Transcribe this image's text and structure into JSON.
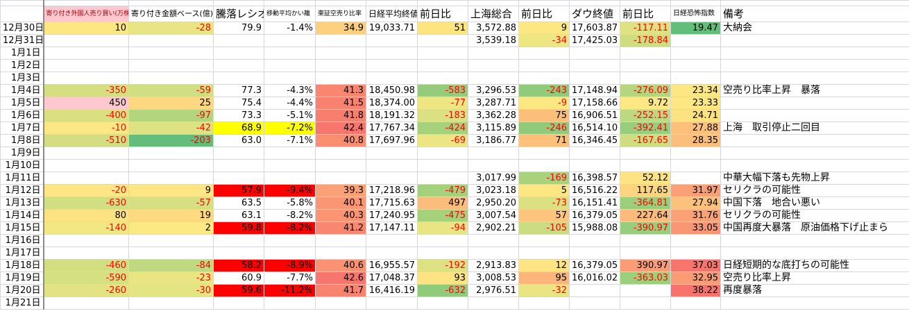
{
  "headers": [
    "",
    "寄り付き外国人売り買い(万株)",
    "寄り付き金額ベース(億)",
    "騰落レシオ",
    "移動平均かい離",
    "東証空売り比率",
    "日経平均終値",
    "前日比",
    "上海総合",
    "前日比",
    "ダウ終値",
    "前日比",
    "日経恐怖指数",
    "備考"
  ],
  "colors": {
    "header_pink": "#ffc7ce",
    "header_pink_text": "#9c0006",
    "negative_text": "#ff0000",
    "alert_red": "#ff0000",
    "alert_yellow": "#ffff00"
  },
  "rows": [
    {
      "date": "12月30日",
      "values": [
        "10",
        "-28",
        "79.9",
        "-1.4%",
        "34.9",
        "19,033.71",
        "51",
        "3,572.88",
        "9",
        "17,603.87",
        "-117.11",
        "19.47",
        "大納会"
      ],
      "fills": [
        "#fde783",
        "#e8e582",
        "",
        "",
        "#fcd07f",
        "",
        "#fde47f",
        "",
        "#fde783",
        "",
        "#dfe283",
        "#63be7b",
        ""
      ]
    },
    {
      "date": "12月31日",
      "values": [
        "",
        "",
        "",
        "",
        "",
        "",
        "",
        "3,539.18",
        "-34",
        "17,425.03",
        "-178.84",
        "",
        ""
      ],
      "fills": [
        "",
        "",
        "",
        "",
        "",
        "",
        "",
        "",
        "#ece683",
        "",
        "#cfdd82",
        "",
        ""
      ]
    },
    {
      "date": "1月1日",
      "values": [
        "",
        "",
        "",
        "",
        "",
        "",
        "",
        "",
        "",
        "",
        "",
        "",
        ""
      ],
      "fills": [
        "",
        "",
        "",
        "",
        "",
        "",
        "",
        "",
        "",
        "",
        "",
        "",
        ""
      ]
    },
    {
      "date": "1月2日",
      "values": [
        "",
        "",
        "",
        "",
        "",
        "",
        "",
        "",
        "",
        "",
        "",
        "",
        ""
      ],
      "fills": [
        "",
        "",
        "",
        "",
        "",
        "",
        "",
        "",
        "",
        "",
        "",
        "",
        ""
      ]
    },
    {
      "date": "1月3日",
      "values": [
        "",
        "",
        "",
        "",
        "",
        "",
        "",
        "",
        "",
        "",
        "",
        "",
        ""
      ],
      "fills": [
        "",
        "",
        "",
        "",
        "",
        "",
        "",
        "",
        "",
        "",
        "",
        "",
        ""
      ]
    },
    {
      "date": "1月4日",
      "values": [
        "-350",
        "-59",
        "77.3",
        "-4.3%",
        "41.3",
        "18,450.98",
        "-583",
        "3,296.53",
        "-243",
        "17,148.94",
        "-276.09",
        "23.34",
        "空売り比率上昇　暴落"
      ],
      "fills": [
        "#d5df82",
        "#d2de82",
        "",
        "",
        "#f98770",
        "",
        "#94cc7b",
        "",
        "#8fcb7a",
        "",
        "#b5d67f",
        "#fde783",
        ""
      ]
    },
    {
      "date": "1月5日",
      "values": [
        "450",
        "25",
        "75.4",
        "-4.4%",
        "41.5",
        "18,374.00",
        "-77",
        "3,287.71",
        "-9",
        "17,158.66",
        "9.72",
        "23.33",
        ""
      ],
      "fills": [
        "#ffc7ce",
        "#fdd880",
        "",
        "",
        "#f8826f",
        "",
        "#ede683",
        "",
        "#fbe883",
        "",
        "#fde883",
        "#fde783",
        ""
      ]
    },
    {
      "date": "1月6日",
      "values": [
        "-400",
        "-97",
        "73.3",
        "-5.1%",
        "41.8",
        "18,191.32",
        "-183",
        "3,362.28",
        "75",
        "16,906.51",
        "-252.15",
        "24.71",
        ""
      ],
      "fills": [
        "#d8e082",
        "#b2d57e",
        "",
        "",
        "#f87f6e",
        "",
        "#dbe182",
        "",
        "#fcbf7b",
        "",
        "#bcd880",
        "#fde282",
        ""
      ]
    },
    {
      "date": "1月7日",
      "values": [
        "-10",
        "-42",
        "68.9",
        "-7.2%",
        "42.4",
        "17,767.34",
        "-424",
        "3,115.89",
        "-246",
        "16,514.10",
        "-392.41",
        "27.88",
        "上海　取引停止二回目"
      ],
      "fills": [
        "#fbe783",
        "#dfe283",
        "#ffff00",
        "#ffff00",
        "#f8766d",
        "",
        "#a5d17d",
        "",
        "#8fcb7a",
        "",
        "#97cd7c",
        "#fcc07b",
        ""
      ]
    },
    {
      "date": "1月8日",
      "values": [
        "-510",
        "-203",
        "63.0",
        "-7.1%",
        "40.8",
        "17,697.96",
        "-69",
        "3,186.77",
        "71",
        "16,346.45",
        "-167.65",
        "28.35",
        ""
      ],
      "fills": [
        "#d3de82",
        "#63be7b",
        "",
        "",
        "#f98e71",
        "",
        "#ece583",
        "",
        "#fcc07b",
        "",
        "#cfdd82",
        "#fcbe7b",
        ""
      ]
    },
    {
      "date": "1月9日",
      "values": [
        "",
        "",
        "",
        "",
        "",
        "",
        "",
        "",
        "",
        "",
        "",
        "",
        ""
      ],
      "fills": [
        "",
        "",
        "",
        "",
        "",
        "",
        "",
        "",
        "",
        "",
        "",
        "",
        ""
      ]
    },
    {
      "date": "1月10日",
      "values": [
        "",
        "",
        "",
        "",
        "",
        "",
        "",
        "",
        "",
        "",
        "",
        "",
        ""
      ],
      "fills": [
        "",
        "",
        "",
        "",
        "",
        "",
        "",
        "",
        "",
        "",
        "",
        "",
        ""
      ]
    },
    {
      "date": "1月11日",
      "values": [
        "",
        "",
        "",
        "",
        "",
        "",
        "",
        "3,017.99",
        "-169",
        "16,398.57",
        "52.12",
        "",
        "中華大幅下落も先物上昇"
      ],
      "fills": [
        "",
        "",
        "",
        "",
        "",
        "",
        "",
        "",
        "#a8d27d",
        "",
        "#fde383",
        "",
        ""
      ]
    },
    {
      "date": "1月12日",
      "values": [
        "-20",
        "9",
        "57.9",
        "-9.4%",
        "39.3",
        "17,218.96",
        "-479",
        "3,023.18",
        "5",
        "16,516.22",
        "117.65",
        "31.97",
        "セリクラの可能性"
      ],
      "fills": [
        "#fde683",
        "#fde683",
        "#ff0000",
        "#ff0000",
        "#faa176",
        "",
        "#a5d17d",
        "",
        "#fee783",
        "",
        "#fdd47f",
        "#fa9f76",
        ""
      ]
    },
    {
      "date": "1月13日",
      "values": [
        "-630",
        "-57",
        "63.5",
        "-5.8%",
        "40.1",
        "17,715.63",
        "497",
        "2,950.20",
        "-73",
        "16,151.41",
        "-364.81",
        "27.94",
        "中国下落　地合い悪い"
      ],
      "fills": [
        "#d1de82",
        "#d6df82",
        "",
        "",
        "#fa9673",
        "",
        "#fcbc7b",
        "",
        "#dbe182",
        "",
        "#9acf7c",
        "#fcc27c",
        ""
      ]
    },
    {
      "date": "1月14日",
      "values": [
        "80",
        "19",
        "63.1",
        "-8.2%",
        "40.3",
        "17,240.95",
        "-475",
        "3,007.54",
        "57",
        "16,379.05",
        "227.64",
        "31.76",
        "セリクラの可能性"
      ],
      "fills": [
        "#fde282",
        "#fdda80",
        "",
        "",
        "#fa9473",
        "",
        "#a5d17d",
        "",
        "#fcc47c",
        "",
        "#fcbb7b",
        "#faa276",
        ""
      ]
    },
    {
      "date": "1月15日",
      "values": [
        "-140",
        "2",
        "59.8",
        "-8.2%",
        "41.2",
        "17,147.11",
        "-94",
        "2,902.21",
        "-105",
        "15,988.08",
        "-390.97",
        "33.05",
        "中国再度大暴落　原油価格下げ止まら"
      ],
      "fills": [
        "#f0e783",
        "#fde983",
        "#ff0000",
        "#ff0000",
        "#f98770",
        "",
        "#eae583",
        "",
        "#cadc81",
        "",
        "#97cd7c",
        "#f99673",
        ""
      ]
    },
    {
      "date": "1月16日",
      "values": [
        "",
        "",
        "",
        "",
        "",
        "",
        "",
        "",
        "",
        "",
        "",
        "",
        ""
      ],
      "fills": [
        "",
        "",
        "",
        "",
        "",
        "",
        "",
        "",
        "",
        "",
        "",
        "",
        ""
      ]
    },
    {
      "date": "1月17日",
      "values": [
        "",
        "",
        "",
        "",
        "",
        "",
        "",
        "",
        "",
        "",
        "",
        "",
        ""
      ],
      "fills": [
        "",
        "",
        "",
        "",
        "",
        "",
        "",
        "",
        "",
        "",
        "",
        "",
        ""
      ]
    },
    {
      "date": "1月18日",
      "values": [
        "-460",
        "-84",
        "58.2",
        "-8.9%",
        "40.6",
        "16,955.57",
        "-192",
        "2,913.83",
        "12",
        "16,379.05",
        "390.97",
        "37.03",
        "日経短期的な底打ちの可能性"
      ],
      "fills": [
        "#d3de82",
        "#bfd980",
        "#ff0000",
        "#ff0000",
        "#f99272",
        "",
        "#dde182",
        "",
        "#fde583",
        "",
        "#fa9c75",
        "#f8756d",
        ""
      ]
    },
    {
      "date": "1月19日",
      "values": [
        "-590",
        "-23",
        "60.9",
        "-7.7%",
        "42.6",
        "17,048.37",
        "93",
        "3,008.53",
        "95",
        "16,016.02",
        "-363.03",
        "32.95",
        "空売り比率上昇"
      ],
      "fills": [
        "#d6df82",
        "#e9e583",
        "",
        "",
        "#f8756d",
        "",
        "#fee383",
        "",
        "#fbb47a",
        "",
        "#9bcf7c",
        "#f99b75",
        ""
      ]
    },
    {
      "date": "1月20日",
      "values": [
        "-260",
        "-30",
        "59.6",
        "-11.2%",
        "41.7",
        "16,416.19",
        "-632",
        "2,976.51",
        "-32",
        "",
        "",
        "38.22",
        "再度暴落"
      ],
      "fills": [
        "#e3e383",
        "#e5e483",
        "#ff0000",
        "#ff0000",
        "#f8846f",
        "",
        "#8fcb7a",
        "",
        "#eae583",
        "",
        "",
        "#f8736c",
        ""
      ]
    },
    {
      "date": "1月21日",
      "values": [
        "",
        "",
        "",
        "",
        "",
        "",
        "",
        "",
        "",
        "",
        "",
        "",
        ""
      ],
      "fills": [
        "",
        "",
        "",
        "",
        "",
        "",
        "",
        "",
        "",
        "",
        "",
        "",
        ""
      ]
    }
  ]
}
